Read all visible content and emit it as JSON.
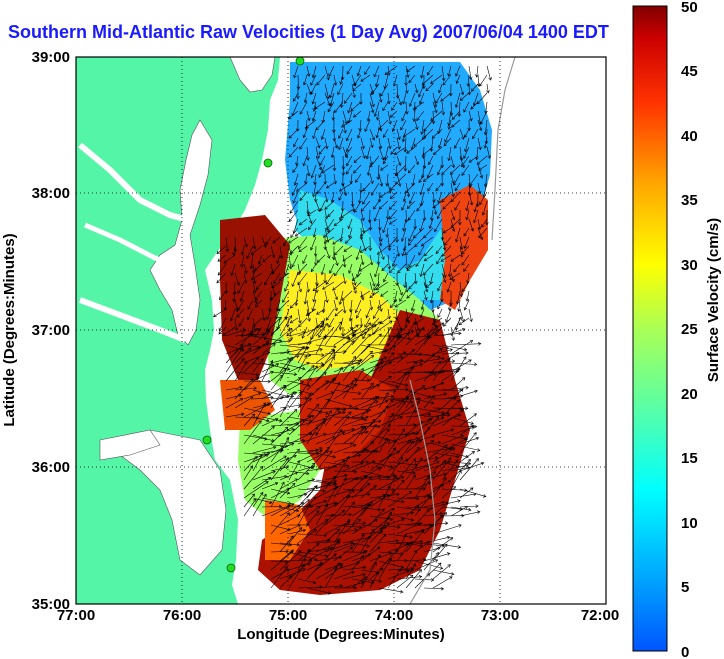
{
  "title": "Southern Mid-Atlantic Raw Velocities (1 Day Avg) 2007/06/04 1400 EDT",
  "xaxis": {
    "label": "Longitude (Degrees:Minutes)",
    "ticks": [
      "77:00",
      "76:00",
      "75:00",
      "74:00",
      "73:00",
      "72:00"
    ]
  },
  "yaxis": {
    "label": "Latitude (Degrees:Minutes)",
    "ticks": [
      "39:00",
      "38:00",
      "37:00",
      "36:00",
      "35:00"
    ]
  },
  "colorbar": {
    "label": "Surface Velocity (cm/s)",
    "ticks": [
      "50",
      "45",
      "40",
      "35",
      "30",
      "25",
      "20",
      "15",
      "10",
      "5",
      "0"
    ],
    "range": [
      0,
      50
    ],
    "colormap": "jet"
  },
  "map": {
    "lon_range": [
      -77,
      -72
    ],
    "lat_range": [
      35,
      39
    ],
    "land_color": "#55f5a8",
    "water_color": "#ffffff",
    "grid": "dotted",
    "station_marker_color": "#22dd22"
  }
}
